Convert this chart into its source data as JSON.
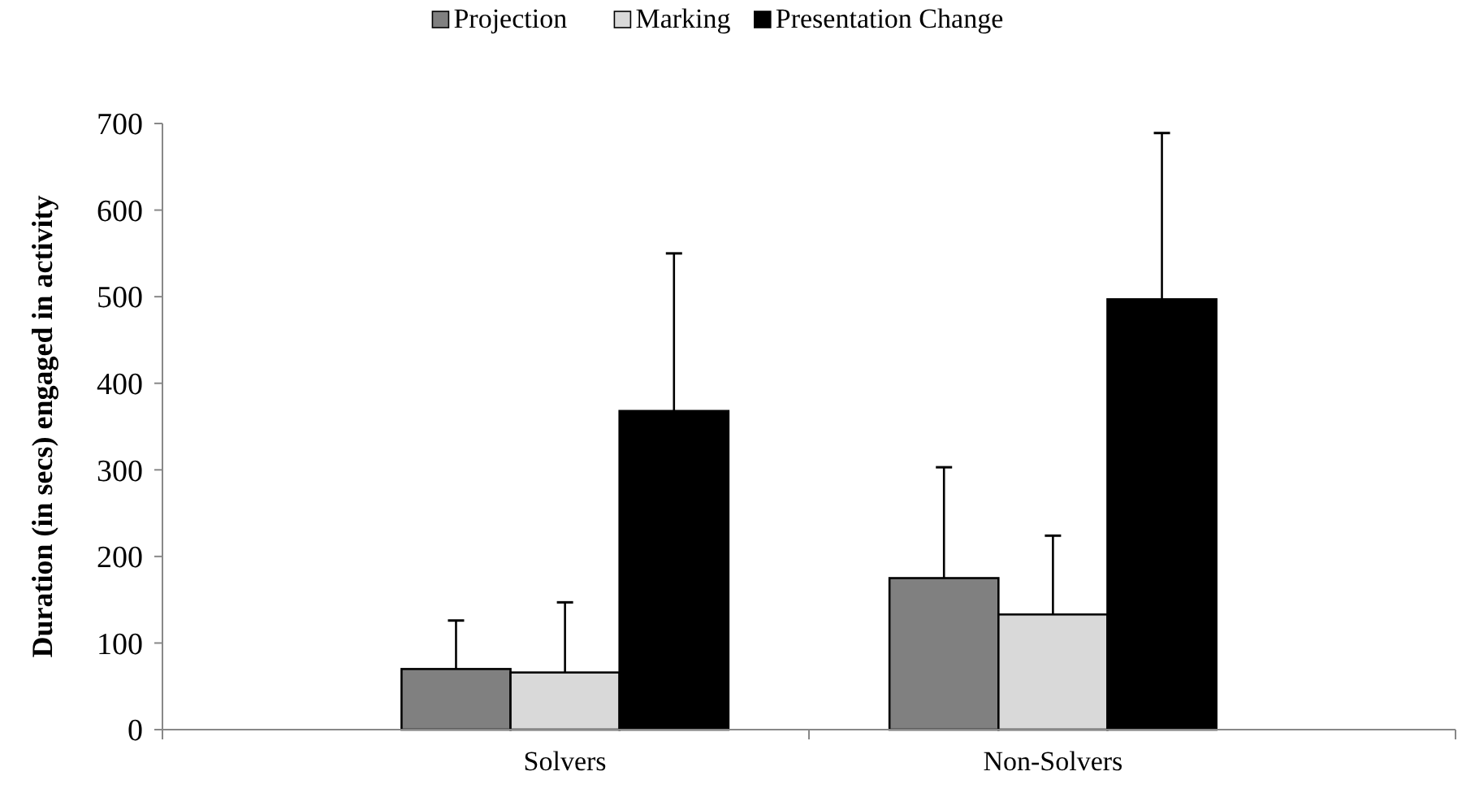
{
  "chart_data": {
    "type": "bar",
    "ylabel": "Duration (in secs) engaged in activity",
    "categories": [
      "Solvers",
      "Non-Solvers"
    ],
    "series": [
      {
        "name": "Projection",
        "color": "#808080",
        "values": [
          70,
          175
        ],
        "errors": [
          [
            70,
            126
          ],
          [
            175,
            303
          ]
        ]
      },
      {
        "name": "Marking",
        "color": "#d9d9d9",
        "values": [
          66,
          133
        ],
        "errors": [
          [
            66,
            147
          ],
          [
            133,
            224
          ]
        ]
      },
      {
        "name": "Presentation Change",
        "color": "#000000",
        "values": [
          368,
          497
        ],
        "errors": [
          [
            368,
            550
          ],
          [
            497,
            689
          ]
        ]
      }
    ],
    "ylim": [
      0,
      700
    ],
    "yticks": [
      0,
      100,
      200,
      300,
      400,
      500,
      600,
      700
    ],
    "legend": "top",
    "grid": false
  }
}
